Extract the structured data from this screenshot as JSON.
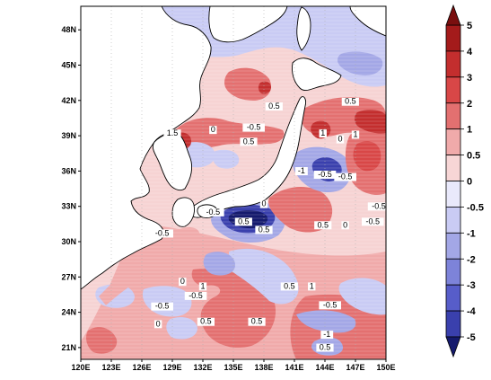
{
  "map": {
    "lon_ticks": [
      "120E",
      "123E",
      "126E",
      "129E",
      "132E",
      "135E",
      "138E",
      "141E",
      "144E",
      "147E",
      "150E"
    ],
    "lat_ticks": [
      "21N",
      "24N",
      "27N",
      "30N",
      "33N",
      "36N",
      "39N",
      "42N",
      "45N",
      "48N"
    ],
    "lon_range": [
      120,
      150
    ],
    "lat_range": [
      20,
      50
    ],
    "contour_labels": [
      {
        "text": "-0.5",
        "lon": 128.0,
        "lat": 30.5
      },
      {
        "text": "-0.5",
        "lon": 133.0,
        "lat": 32.3
      },
      {
        "text": "0.5",
        "lon": 136.0,
        "lat": 31.5
      },
      {
        "text": "-0.5",
        "lon": 131.3,
        "lat": 25.2
      },
      {
        "text": "-0.5",
        "lon": 128.0,
        "lat": 24.3
      },
      {
        "text": "1",
        "lon": 132.0,
        "lat": 26.0
      },
      {
        "text": "0",
        "lon": 127.6,
        "lat": 22.8
      },
      {
        "text": "0.5",
        "lon": 132.3,
        "lat": 23.0
      },
      {
        "text": "0.5",
        "lon": 137.3,
        "lat": 23.0
      },
      {
        "text": "0",
        "lon": 130.0,
        "lat": 26.4
      },
      {
        "text": "0.5",
        "lon": 140.5,
        "lat": 26.0
      },
      {
        "text": "1",
        "lon": 142.7,
        "lat": 26.0
      },
      {
        "text": "-0.5",
        "lon": 144.5,
        "lat": 24.4
      },
      {
        "text": "-1",
        "lon": 144.2,
        "lat": 21.9
      },
      {
        "text": "0.5",
        "lon": 144.0,
        "lat": 20.8
      },
      {
        "text": "0.5",
        "lon": 143.8,
        "lat": 31.2
      },
      {
        "text": "0",
        "lon": 146.0,
        "lat": 31.2
      },
      {
        "text": "-0.5",
        "lon": 148.7,
        "lat": 31.5
      },
      {
        "text": "-0.5",
        "lon": 149.3,
        "lat": 32.8
      },
      {
        "text": "-1",
        "lon": 141.7,
        "lat": 35.8
      },
      {
        "text": "-0.5",
        "lon": 144.0,
        "lat": 35.5
      },
      {
        "text": "-0.5",
        "lon": 146.0,
        "lat": 35.3
      },
      {
        "text": "0.5",
        "lon": 139.0,
        "lat": 41.3
      },
      {
        "text": "0.5",
        "lon": 146.5,
        "lat": 41.7
      },
      {
        "text": "1",
        "lon": 147.0,
        "lat": 38.9
      },
      {
        "text": "0",
        "lon": 145.5,
        "lat": 38.5
      },
      {
        "text": "1",
        "lon": 143.8,
        "lat": 39.0
      },
      {
        "text": "-0.5",
        "lon": 137.0,
        "lat": 39.5
      },
      {
        "text": "0.5",
        "lon": 136.5,
        "lat": 38.3
      },
      {
        "text": "0",
        "lon": 133.0,
        "lat": 39.3
      },
      {
        "text": "1.5",
        "lon": 129.0,
        "lat": 39.0
      },
      {
        "text": "0",
        "lon": 138.0,
        "lat": 33.0
      },
      {
        "text": "0.5",
        "lon": 138.0,
        "lat": 30.8
      }
    ]
  },
  "colorbar": {
    "labels": [
      "5",
      "4",
      "3",
      "2",
      "1",
      "0.5",
      "0",
      "-0.5",
      "-1",
      "-2",
      "-3",
      "-4",
      "-5"
    ],
    "colors": [
      "#f0aaaa",
      "#e37070",
      "#d84747",
      "#c32e2e",
      "#a41b1b",
      "#7a0f0f",
      "#c9cbf4",
      "#a3a7e6",
      "#7d83d9",
      "#575dc9",
      "#3a40ad",
      "#252a8a",
      "#151a6d"
    ],
    "positive_colors": [
      "#f7d6d6",
      "#f0aaaa",
      "#e37070",
      "#d84747",
      "#c32e2e",
      "#a41b1b"
    ],
    "negative_colors": [
      "#e9e9fb",
      "#c9cbf4",
      "#a3a7e6",
      "#7d83d9",
      "#575dc9",
      "#3a40ad"
    ],
    "top_color": "#7a0f0f",
    "bottom_color": "#151a6d"
  },
  "colors": {
    "land": "#ffffff",
    "coast": "#000000",
    "grid": "#b0b0b0"
  }
}
